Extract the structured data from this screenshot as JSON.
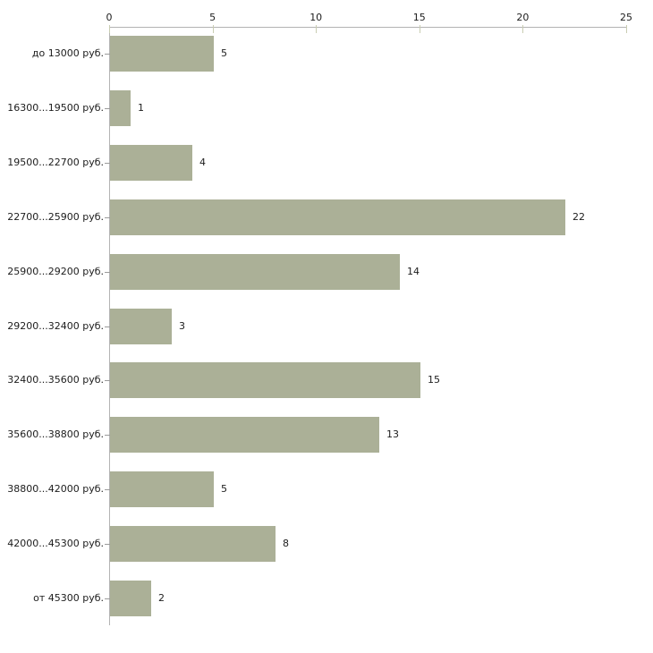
{
  "chart_data": {
    "type": "bar",
    "orientation": "horizontal",
    "title": "",
    "xlabel": "",
    "ylabel": "",
    "categories": [
      "до 13000 руб.",
      "16300...19500 руб.",
      "19500...22700 руб.",
      "22700...25900 руб.",
      "25900...29200 руб.",
      "29200...32400 руб.",
      "32400...35600 руб.",
      "35600...38800 руб.",
      "38800...42000 руб.",
      "42000...45300 руб.",
      "от 45300 руб."
    ],
    "values": [
      5,
      1,
      4,
      22,
      14,
      3,
      15,
      13,
      5,
      8,
      2
    ],
    "xlim": [
      0,
      25
    ],
    "x_ticks": [
      0,
      5,
      10,
      15,
      20,
      25
    ],
    "axis_position": "top",
    "grid": false,
    "legend": false,
    "bar_color": "#abb097",
    "axis_color": "#b3b3b3",
    "x_tick_color": "#c9cdb2",
    "y_tick_color": "#9b9b9b",
    "text_color": "#1c1c1c"
  }
}
